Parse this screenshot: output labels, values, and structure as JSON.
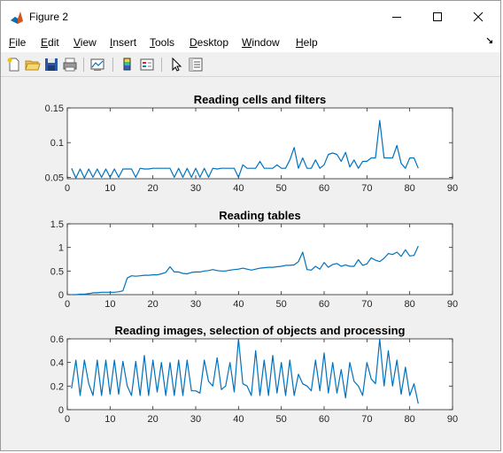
{
  "window": {
    "title": "Figure 2"
  },
  "menu": {
    "items": [
      {
        "label": "File",
        "ul": "F",
        "rest": "ile"
      },
      {
        "label": "Edit",
        "ul": "E",
        "rest": "dit"
      },
      {
        "label": "View",
        "ul": "V",
        "rest": "iew"
      },
      {
        "label": "Insert",
        "ul": "I",
        "rest": "nsert"
      },
      {
        "label": "Tools",
        "ul": "T",
        "rest": "ools"
      },
      {
        "label": "Desktop",
        "ul": "D",
        "rest": "esktop"
      },
      {
        "label": "Window",
        "ul": "W",
        "rest": "indow"
      },
      {
        "label": "Help",
        "ul": "H",
        "rest": "elp"
      }
    ]
  },
  "toolbar": {
    "icons": [
      "new-figure-icon",
      "open-file-icon",
      "save-icon",
      "print-icon",
      "link-plot-icon",
      "insert-colorbar-icon",
      "insert-legend-icon",
      "edit-plot-icon",
      "property-inspector-icon"
    ]
  },
  "colors": {
    "line": "#0072bd",
    "axes_bg": "#ffffff",
    "figure_bg": "#f0f0f0"
  },
  "chart_data": [
    {
      "type": "line",
      "title": "Reading cells and filters",
      "xlim": [
        0,
        90
      ],
      "ylim": [
        0.048,
        0.15
      ],
      "xticks": [
        0,
        10,
        20,
        30,
        40,
        50,
        60,
        70,
        80,
        90
      ],
      "yticks": [
        0.05,
        0.1,
        0.15
      ],
      "ytick_labels": [
        "0.05",
        "0.1",
        "0.15"
      ],
      "x": [
        1,
        2,
        3,
        4,
        5,
        6,
        7,
        8,
        9,
        10,
        11,
        12,
        13,
        14,
        15,
        16,
        17,
        18,
        19,
        20,
        21,
        22,
        23,
        24,
        25,
        26,
        27,
        28,
        29,
        30,
        31,
        32,
        33,
        34,
        35,
        36,
        37,
        38,
        39,
        40,
        41,
        42,
        43,
        44,
        45,
        46,
        47,
        48,
        49,
        50,
        51,
        52,
        53,
        54,
        55,
        56,
        57,
        58,
        59,
        60,
        61,
        62,
        63,
        64,
        65,
        66,
        67,
        68,
        69,
        70,
        71,
        72,
        73,
        74,
        75,
        76,
        77,
        78,
        79,
        80,
        81,
        82
      ],
      "y": [
        0.063,
        0.049,
        0.062,
        0.049,
        0.062,
        0.05,
        0.062,
        0.05,
        0.062,
        0.05,
        0.062,
        0.05,
        0.062,
        0.062,
        0.062,
        0.05,
        0.063,
        0.062,
        0.062,
        0.063,
        0.063,
        0.063,
        0.063,
        0.063,
        0.05,
        0.063,
        0.05,
        0.063,
        0.05,
        0.063,
        0.05,
        0.063,
        0.05,
        0.063,
        0.062,
        0.063,
        0.063,
        0.063,
        0.063,
        0.05,
        0.068,
        0.063,
        0.063,
        0.063,
        0.073,
        0.063,
        0.063,
        0.063,
        0.068,
        0.063,
        0.063,
        0.075,
        0.093,
        0.063,
        0.078,
        0.063,
        0.063,
        0.075,
        0.063,
        0.068,
        0.083,
        0.085,
        0.083,
        0.073,
        0.086,
        0.065,
        0.075,
        0.063,
        0.073,
        0.073,
        0.078,
        0.078,
        0.132,
        0.078,
        0.078,
        0.078,
        0.096,
        0.07,
        0.063,
        0.078,
        0.078,
        0.063
      ]
    },
    {
      "type": "line",
      "title": "Reading tables",
      "xlim": [
        0,
        90
      ],
      "ylim": [
        0,
        1.5
      ],
      "xticks": [
        0,
        10,
        20,
        30,
        40,
        50,
        60,
        70,
        80,
        90
      ],
      "yticks": [
        0,
        0.5,
        1,
        1.5
      ],
      "ytick_labels": [
        "0",
        "0.5",
        "1",
        "1.5"
      ],
      "x": [
        1,
        2,
        3,
        4,
        5,
        6,
        7,
        8,
        9,
        10,
        11,
        12,
        13,
        14,
        15,
        16,
        17,
        18,
        19,
        20,
        21,
        22,
        23,
        24,
        25,
        26,
        27,
        28,
        29,
        30,
        31,
        32,
        33,
        34,
        35,
        36,
        37,
        38,
        39,
        40,
        41,
        42,
        43,
        44,
        45,
        46,
        47,
        48,
        49,
        50,
        51,
        52,
        53,
        54,
        55,
        56,
        57,
        58,
        59,
        60,
        61,
        62,
        63,
        64,
        65,
        66,
        67,
        68,
        69,
        70,
        71,
        72,
        73,
        74,
        75,
        76,
        77,
        78,
        79,
        80,
        81,
        82
      ],
      "y": [
        0.0,
        0.0,
        0.01,
        0.01,
        0.02,
        0.04,
        0.04,
        0.05,
        0.05,
        0.05,
        0.05,
        0.06,
        0.08,
        0.35,
        0.4,
        0.39,
        0.4,
        0.41,
        0.41,
        0.42,
        0.42,
        0.44,
        0.47,
        0.59,
        0.48,
        0.48,
        0.45,
        0.44,
        0.47,
        0.48,
        0.48,
        0.5,
        0.51,
        0.53,
        0.51,
        0.5,
        0.5,
        0.52,
        0.53,
        0.54,
        0.56,
        0.54,
        0.52,
        0.54,
        0.56,
        0.57,
        0.58,
        0.58,
        0.59,
        0.6,
        0.62,
        0.62,
        0.63,
        0.7,
        0.9,
        0.53,
        0.52,
        0.6,
        0.54,
        0.68,
        0.58,
        0.64,
        0.66,
        0.6,
        0.63,
        0.6,
        0.6,
        0.74,
        0.62,
        0.65,
        0.78,
        0.73,
        0.7,
        0.77,
        0.87,
        0.85,
        0.9,
        0.81,
        0.95,
        0.82,
        0.83,
        1.03
      ]
    },
    {
      "type": "line",
      "title": "Reading images, selection of objects and processing",
      "xlim": [
        0,
        90
      ],
      "ylim": [
        0,
        0.6
      ],
      "xticks": [
        0,
        10,
        20,
        30,
        40,
        50,
        60,
        70,
        80,
        90
      ],
      "yticks": [
        0,
        0.2,
        0.4,
        0.6
      ],
      "ytick_labels": [
        "0",
        "0.2",
        "0.4",
        "0.6"
      ],
      "x": [
        1,
        2,
        3,
        4,
        5,
        6,
        7,
        8,
        9,
        10,
        11,
        12,
        13,
        14,
        15,
        16,
        17,
        18,
        19,
        20,
        21,
        22,
        23,
        24,
        25,
        26,
        27,
        28,
        29,
        30,
        31,
        32,
        33,
        34,
        35,
        36,
        37,
        38,
        39,
        40,
        41,
        42,
        43,
        44,
        45,
        46,
        47,
        48,
        49,
        50,
        51,
        52,
        53,
        54,
        55,
        56,
        57,
        58,
        59,
        60,
        61,
        62,
        63,
        64,
        65,
        66,
        67,
        68,
        69,
        70,
        71,
        72,
        73,
        74,
        75,
        76,
        77,
        78,
        79,
        80,
        81,
        82
      ],
      "y": [
        0.18,
        0.42,
        0.12,
        0.42,
        0.22,
        0.12,
        0.42,
        0.12,
        0.42,
        0.13,
        0.42,
        0.13,
        0.41,
        0.2,
        0.12,
        0.41,
        0.12,
        0.46,
        0.12,
        0.42,
        0.15,
        0.4,
        0.12,
        0.4,
        0.12,
        0.42,
        0.12,
        0.42,
        0.16,
        0.16,
        0.14,
        0.42,
        0.24,
        0.2,
        0.44,
        0.17,
        0.2,
        0.4,
        0.15,
        0.6,
        0.22,
        0.2,
        0.12,
        0.5,
        0.12,
        0.42,
        0.12,
        0.46,
        0.14,
        0.4,
        0.12,
        0.42,
        0.12,
        0.3,
        0.22,
        0.2,
        0.16,
        0.42,
        0.16,
        0.48,
        0.14,
        0.4,
        0.14,
        0.34,
        0.1,
        0.4,
        0.24,
        0.2,
        0.12,
        0.4,
        0.26,
        0.22,
        0.6,
        0.2,
        0.5,
        0.2,
        0.42,
        0.13,
        0.36,
        0.12,
        0.22,
        0.05
      ]
    }
  ]
}
